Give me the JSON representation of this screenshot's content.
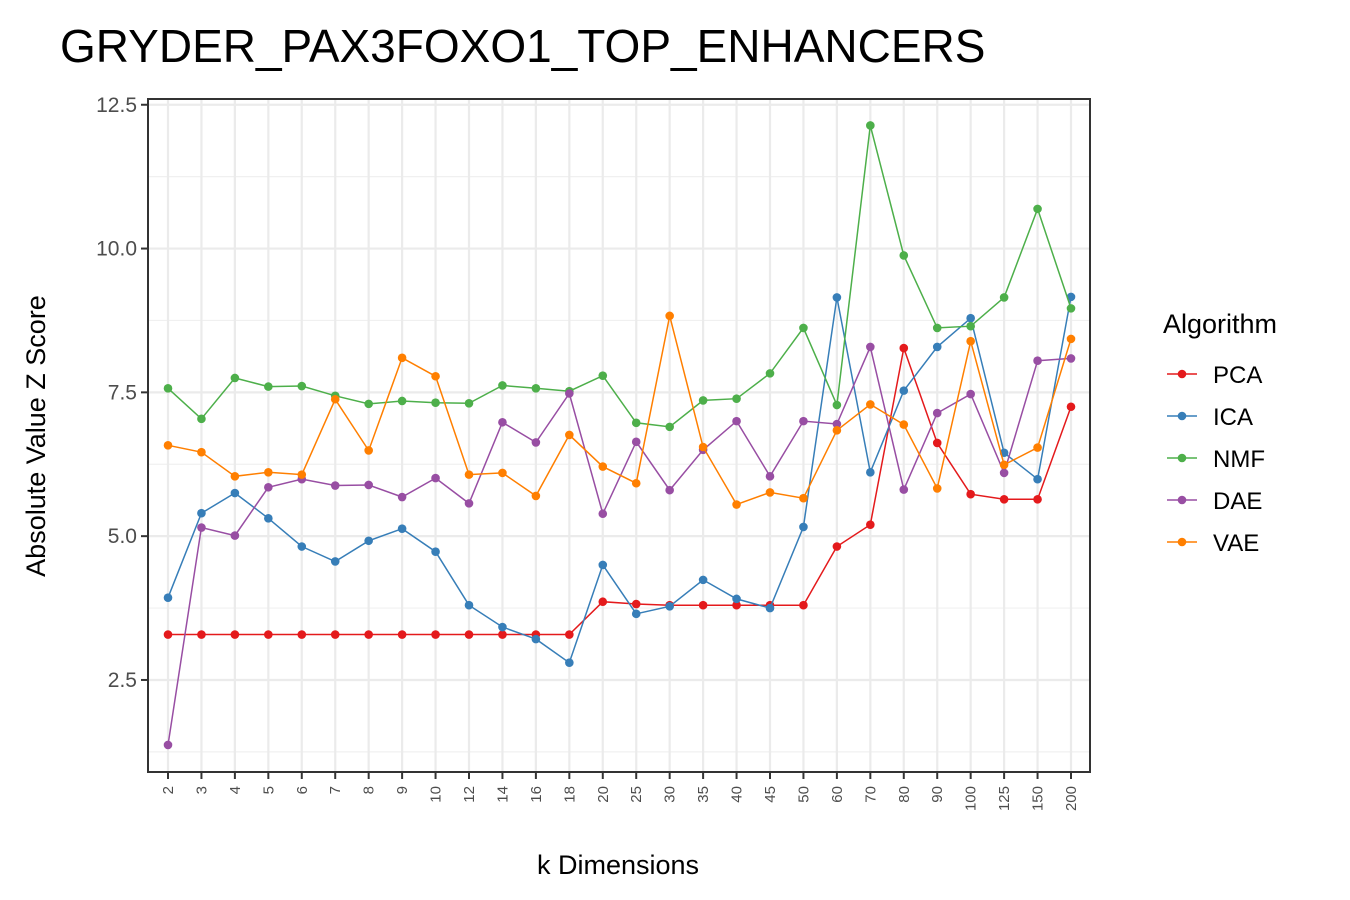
{
  "chart_data": {
    "type": "line",
    "title": "GRYDER_PAX3FOXO1_TOP_ENHANCERS",
    "xlabel": "k Dimensions",
    "ylabel": "Absolute Value Z Score",
    "categories": [
      "2",
      "3",
      "4",
      "5",
      "6",
      "7",
      "8",
      "9",
      "10",
      "12",
      "14",
      "16",
      "18",
      "20",
      "25",
      "30",
      "35",
      "40",
      "45",
      "50",
      "60",
      "70",
      "80",
      "90",
      "100",
      "125",
      "150",
      "200"
    ],
    "ylim": [
      0.9,
      12.6
    ],
    "yticks": [
      2.5,
      5.0,
      7.5,
      10.0,
      12.5
    ],
    "ytick_labels": [
      "2.5",
      "5.0",
      "7.5",
      "10.0",
      "12.5"
    ],
    "grid": true,
    "legend": {
      "title": "Algorithm",
      "position": "right"
    },
    "series": [
      {
        "name": "PCA",
        "color": "#e41a1c",
        "values": [
          3.29,
          3.29,
          3.29,
          3.29,
          3.29,
          3.29,
          3.29,
          3.29,
          3.29,
          3.29,
          3.29,
          3.29,
          3.29,
          3.86,
          3.82,
          3.8,
          3.8,
          3.8,
          3.8,
          3.8,
          4.82,
          5.2,
          8.27,
          6.62,
          5.73,
          5.64,
          5.64,
          7.25
        ]
      },
      {
        "name": "ICA",
        "color": "#377eb8",
        "values": [
          3.93,
          5.4,
          5.75,
          5.31,
          4.82,
          4.56,
          4.92,
          5.13,
          4.73,
          3.8,
          3.42,
          3.21,
          2.8,
          4.5,
          3.65,
          3.78,
          4.24,
          3.91,
          3.75,
          5.16,
          9.15,
          6.11,
          7.53,
          8.29,
          8.79,
          6.45,
          5.99,
          9.16
        ]
      },
      {
        "name": "NMF",
        "color": "#4daf4a",
        "values": [
          7.57,
          7.04,
          7.75,
          7.6,
          7.61,
          7.44,
          7.3,
          7.35,
          7.32,
          7.31,
          7.62,
          7.57,
          7.52,
          7.79,
          6.97,
          6.9,
          7.36,
          7.39,
          7.83,
          8.62,
          7.28,
          12.14,
          9.88,
          8.62,
          8.65,
          9.15,
          10.69,
          8.96
        ]
      },
      {
        "name": "DAE",
        "color": "#984ea3",
        "values": [
          1.37,
          5.15,
          5.01,
          5.85,
          5.99,
          5.88,
          5.89,
          5.68,
          6.01,
          5.57,
          6.98,
          6.63,
          7.48,
          5.39,
          6.64,
          5.8,
          6.5,
          7.0,
          6.04,
          7.0,
          6.95,
          8.29,
          5.81,
          7.14,
          7.47,
          6.1,
          8.05,
          8.09
        ]
      },
      {
        "name": "VAE",
        "color": "#ff7f00",
        "values": [
          6.58,
          6.46,
          6.04,
          6.11,
          6.07,
          7.38,
          6.49,
          8.1,
          7.78,
          6.07,
          6.1,
          5.7,
          6.76,
          6.21,
          5.92,
          8.83,
          6.55,
          5.55,
          5.76,
          5.66,
          6.84,
          7.29,
          6.94,
          5.83,
          8.39,
          6.24,
          6.54,
          8.43
        ]
      }
    ]
  }
}
